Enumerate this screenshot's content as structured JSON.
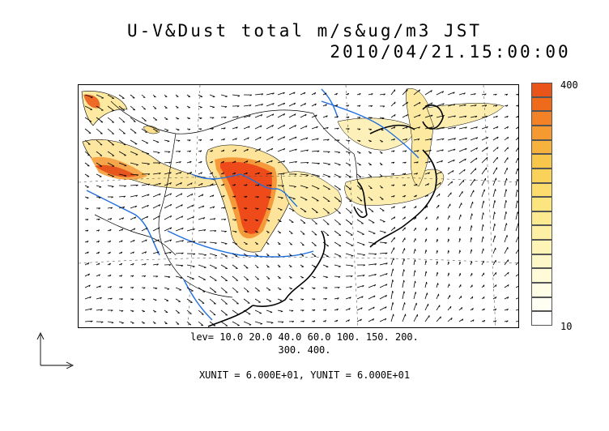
{
  "title_line1": "U-V&Dust total m/s&ug/m3 JST",
  "title_line2": "2010/04/21.15:00:00",
  "colorbar": {
    "max_label": "400",
    "min_label": "10",
    "colors": [
      "#e8541a",
      "#f06a1c",
      "#f38226",
      "#f49a30",
      "#f6b23c",
      "#f8c64a",
      "#fad25a",
      "#fbdc6c",
      "#fce47e",
      "#fdea90",
      "#fdf0a4",
      "#fef4b6",
      "#fef8c8",
      "#fffbd8",
      "#fffde6",
      "#fffef2",
      "#ffffff"
    ]
  },
  "levels_line1": "lev= 10.0 20.0 40.0 60.0 100. 150. 200.",
  "levels_line2": "300. 400.",
  "unit_text": "XUNIT = 6.000E+01, YUNIT = 6.000E+01",
  "colors": {
    "coast": "#000000",
    "river": "#1f6fe0",
    "dust_high": "#f04a1a",
    "dust_mid": "#f6b23c",
    "dust_low": "#fdf3b8"
  }
}
